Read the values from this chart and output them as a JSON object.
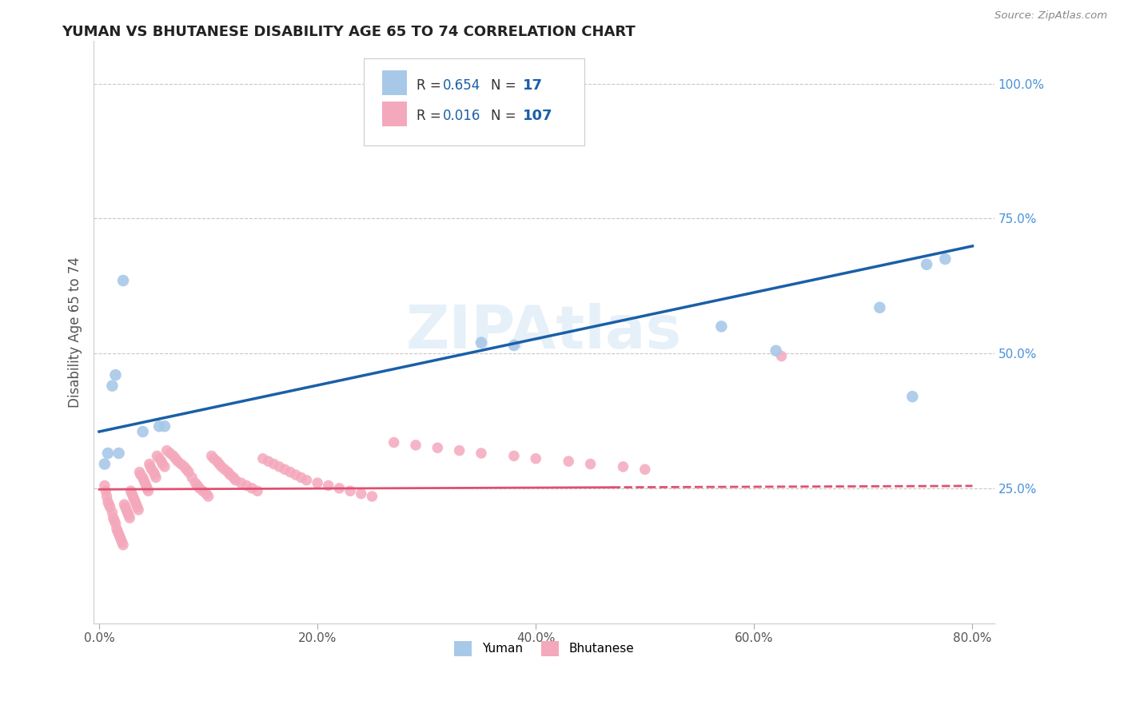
{
  "title": "YUMAN VS BHUTANESE DISABILITY AGE 65 TO 74 CORRELATION CHART",
  "source": "Source: ZipAtlas.com",
  "ylabel": "Disability Age 65 to 74",
  "xlim": [
    -0.005,
    0.82
  ],
  "ylim": [
    0.0,
    1.08
  ],
  "xticks": [
    0.0,
    0.2,
    0.4,
    0.6,
    0.8
  ],
  "xticklabels": [
    "0.0%",
    "20.0%",
    "40.0%",
    "60.0%",
    "80.0%"
  ],
  "yticks_right": [
    0.25,
    0.5,
    0.75,
    1.0
  ],
  "yticklabels_right": [
    "25.0%",
    "50.0%",
    "75.0%",
    "100.0%"
  ],
  "yuman_R": 0.654,
  "yuman_N": 17,
  "bhutanese_R": 0.016,
  "bhutanese_N": 107,
  "yuman_color": "#a8c8e8",
  "bhutanese_color": "#f4a8bc",
  "yuman_line_color": "#1a5fa8",
  "bhutanese_line_color": "#e05070",
  "grid_color": "#c8c8c8",
  "title_color": "#222222",
  "axis_label_color": "#555555",
  "right_tick_color": "#4a90d9",
  "legend_text_color": "#1a5fa8",
  "legend_border_color": "#cccccc",
  "yuman_x": [
    0.005,
    0.008,
    0.012,
    0.015,
    0.018,
    0.022,
    0.04,
    0.055,
    0.06,
    0.35,
    0.38,
    0.57,
    0.62,
    0.715,
    0.745,
    0.758,
    0.775
  ],
  "yuman_y": [
    0.295,
    0.315,
    0.44,
    0.46,
    0.315,
    0.635,
    0.355,
    0.365,
    0.365,
    0.52,
    0.515,
    0.55,
    0.505,
    0.585,
    0.42,
    0.665,
    0.675
  ],
  "bhutanese_x": [
    0.005,
    0.006,
    0.007,
    0.008,
    0.009,
    0.01,
    0.012,
    0.013,
    0.014,
    0.015,
    0.016,
    0.017,
    0.018,
    0.019,
    0.02,
    0.021,
    0.022,
    0.023,
    0.024,
    0.025,
    0.026,
    0.027,
    0.028,
    0.029,
    0.03,
    0.031,
    0.032,
    0.033,
    0.034,
    0.035,
    0.036,
    0.037,
    0.038,
    0.04,
    0.041,
    0.042,
    0.043,
    0.044,
    0.045,
    0.046,
    0.047,
    0.048,
    0.05,
    0.051,
    0.052,
    0.053,
    0.055,
    0.057,
    0.058,
    0.06,
    0.062,
    0.065,
    0.068,
    0.07,
    0.072,
    0.075,
    0.078,
    0.08,
    0.082,
    0.085,
    0.088,
    0.09,
    0.092,
    0.095,
    0.098,
    0.1,
    0.103,
    0.105,
    0.108,
    0.11,
    0.112,
    0.115,
    0.118,
    0.12,
    0.123,
    0.125,
    0.13,
    0.135,
    0.14,
    0.145,
    0.15,
    0.155,
    0.16,
    0.165,
    0.17,
    0.175,
    0.18,
    0.185,
    0.19,
    0.2,
    0.21,
    0.22,
    0.23,
    0.24,
    0.25,
    0.27,
    0.29,
    0.31,
    0.33,
    0.35,
    0.38,
    0.4,
    0.43,
    0.45,
    0.48,
    0.5,
    0.625
  ],
  "bhutanese_y": [
    0.255,
    0.245,
    0.235,
    0.225,
    0.22,
    0.215,
    0.205,
    0.195,
    0.19,
    0.185,
    0.175,
    0.17,
    0.165,
    0.16,
    0.155,
    0.15,
    0.145,
    0.22,
    0.215,
    0.21,
    0.205,
    0.2,
    0.195,
    0.245,
    0.24,
    0.235,
    0.23,
    0.225,
    0.22,
    0.215,
    0.21,
    0.28,
    0.275,
    0.27,
    0.265,
    0.26,
    0.255,
    0.25,
    0.245,
    0.295,
    0.29,
    0.285,
    0.28,
    0.275,
    0.27,
    0.31,
    0.305,
    0.3,
    0.295,
    0.29,
    0.32,
    0.315,
    0.31,
    0.305,
    0.3,
    0.295,
    0.29,
    0.285,
    0.28,
    0.27,
    0.26,
    0.255,
    0.25,
    0.245,
    0.24,
    0.235,
    0.31,
    0.305,
    0.3,
    0.295,
    0.29,
    0.285,
    0.28,
    0.275,
    0.27,
    0.265,
    0.26,
    0.255,
    0.25,
    0.245,
    0.305,
    0.3,
    0.295,
    0.29,
    0.285,
    0.28,
    0.275,
    0.27,
    0.265,
    0.26,
    0.255,
    0.25,
    0.245,
    0.24,
    0.235,
    0.335,
    0.33,
    0.325,
    0.32,
    0.315,
    0.31,
    0.305,
    0.3,
    0.295,
    0.29,
    0.285,
    0.495
  ]
}
